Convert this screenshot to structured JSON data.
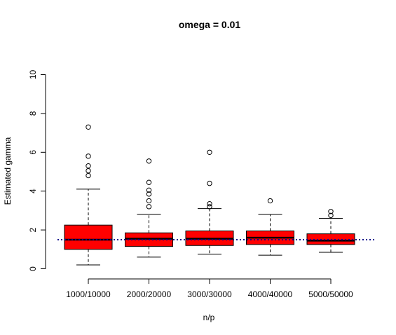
{
  "chart_data": {
    "type": "box",
    "title": "omega = 0.01",
    "xlabel": "n/p",
    "ylabel": "Estimated gamma",
    "ylim": [
      0,
      10
    ],
    "yticks": [
      0,
      2,
      4,
      6,
      8,
      10
    ],
    "categories": [
      "1000/10000",
      "2000/20000",
      "3000/30000",
      "4000/40000",
      "5000/50000"
    ],
    "boxes": [
      {
        "category": "1000/10000",
        "whisker_low": 0.2,
        "q1": 1.0,
        "median": 1.5,
        "q3": 2.25,
        "whisker_high": 4.1,
        "outliers": [
          4.8,
          5.05,
          5.3,
          5.8,
          7.3
        ]
      },
      {
        "category": "2000/20000",
        "whisker_low": 0.6,
        "q1": 1.15,
        "median": 1.55,
        "q3": 1.85,
        "whisker_high": 2.8,
        "outliers": [
          3.2,
          3.5,
          3.85,
          4.05,
          4.45,
          5.55
        ]
      },
      {
        "category": "3000/30000",
        "whisker_low": 0.75,
        "q1": 1.2,
        "median": 1.55,
        "q3": 1.95,
        "whisker_high": 3.1,
        "outliers": [
          3.2,
          3.35,
          4.4,
          6.0
        ]
      },
      {
        "category": "4000/40000",
        "whisker_low": 0.7,
        "q1": 1.25,
        "median": 1.6,
        "q3": 1.95,
        "whisker_high": 2.8,
        "outliers": [
          3.5
        ]
      },
      {
        "category": "5000/50000",
        "whisker_low": 0.85,
        "q1": 1.25,
        "median": 1.45,
        "q3": 1.8,
        "whisker_high": 2.6,
        "outliers": [
          2.75,
          2.95
        ]
      }
    ],
    "reference_line": {
      "y": 1.5,
      "style": "dotted",
      "color": "#00008b"
    },
    "colors": {
      "box_fill": "#ff0000",
      "box_stroke": "#000000",
      "axis": "#000000"
    },
    "grid": false
  }
}
